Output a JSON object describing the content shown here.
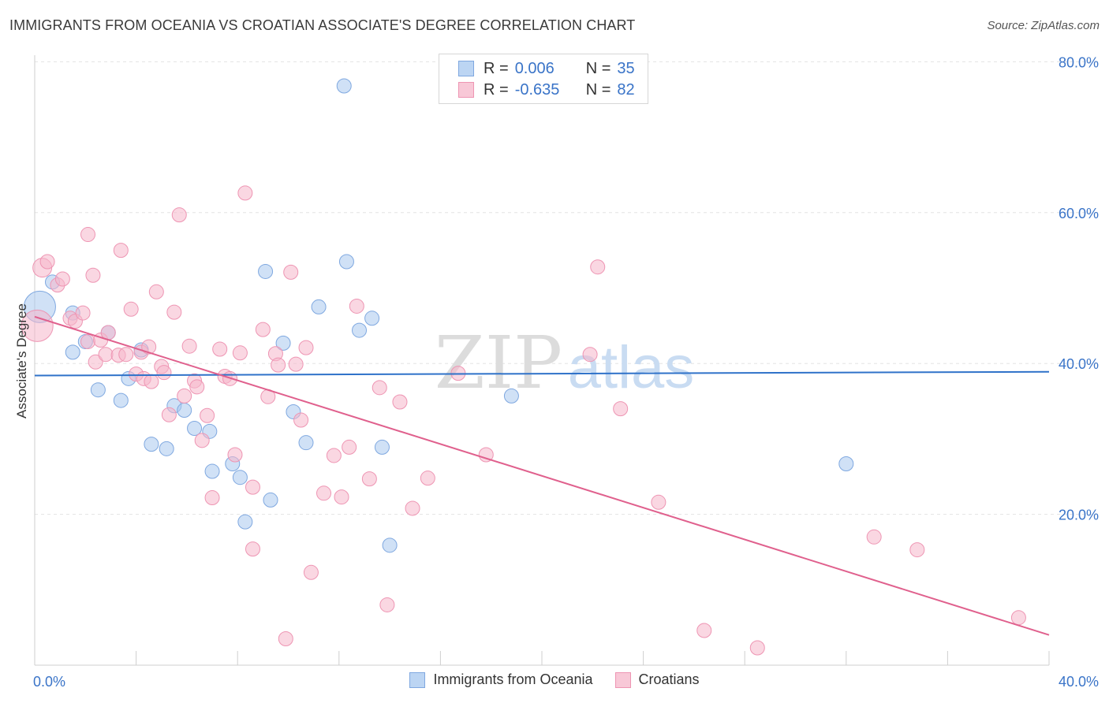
{
  "title": "IMMIGRANTS FROM OCEANIA VS CROATIAN ASSOCIATE'S DEGREE CORRELATION CHART",
  "source": "Source: ZipAtlas.com",
  "watermark": {
    "zip": "ZIP",
    "atlas": "atlas"
  },
  "colors": {
    "blue_fill": "#a9c8ef",
    "blue_stroke": "#7fa8e0",
    "blue_line": "#2f72c9",
    "pink_fill": "#f5b7cb",
    "pink_stroke": "#ee95b3",
    "pink_line": "#e0608d",
    "tick_text": "#3a74c8",
    "grid": "#e3e3e3"
  },
  "legend": {
    "rows": [
      {
        "r_label": "R =",
        "r_value": "0.006",
        "n_label": "N =",
        "n_value": "35"
      },
      {
        "r_label": "R =",
        "r_value": "-0.635",
        "n_label": "N =",
        "n_value": "82"
      }
    ]
  },
  "bottom_legend": [
    "Immigrants from Oceania",
    "Croatians"
  ],
  "chart_data": {
    "type": "scatter",
    "ylabel": "Associate's Degree",
    "x_tick_labels": [
      "0.0%",
      "40.0%"
    ],
    "y_tick_labels": [
      "20.0%",
      "40.0%",
      "60.0%",
      "80.0%"
    ],
    "xlim": [
      0,
      40
    ],
    "ylim": [
      0,
      82
    ],
    "grid": true,
    "series": [
      {
        "name": "Immigrants from Oceania",
        "color": "#a9c8ef",
        "trend": {
          "x": [
            0,
            40
          ],
          "y": [
            38.4,
            38.9
          ]
        },
        "points": [
          [
            0.2,
            47.5,
            20
          ],
          [
            0.7,
            50.8,
            9
          ],
          [
            1.5,
            46.7,
            9
          ],
          [
            1.5,
            41.5,
            9
          ],
          [
            2.0,
            42.9,
            9
          ],
          [
            2.5,
            36.5,
            9
          ],
          [
            2.9,
            44.1,
            9
          ],
          [
            3.4,
            35.1,
            9
          ],
          [
            3.7,
            38.0,
            9
          ],
          [
            4.2,
            41.8,
            9
          ],
          [
            4.6,
            29.3,
            9
          ],
          [
            5.2,
            28.7,
            9
          ],
          [
            5.5,
            34.4,
            9
          ],
          [
            5.9,
            33.8,
            9
          ],
          [
            6.3,
            31.4,
            9
          ],
          [
            6.9,
            31.0,
            9
          ],
          [
            7.0,
            25.7,
            9
          ],
          [
            7.8,
            26.7,
            9
          ],
          [
            8.1,
            24.9,
            9
          ],
          [
            8.3,
            19.0,
            9
          ],
          [
            9.1,
            52.2,
            9
          ],
          [
            9.3,
            21.9,
            9
          ],
          [
            9.8,
            42.7,
            9
          ],
          [
            10.2,
            33.6,
            9
          ],
          [
            10.7,
            29.5,
            9
          ],
          [
            11.2,
            47.5,
            9
          ],
          [
            12.3,
            53.5,
            9
          ],
          [
            12.8,
            44.4,
            9
          ],
          [
            13.3,
            46.0,
            9
          ],
          [
            13.7,
            28.9,
            9
          ],
          [
            14.0,
            15.9,
            9
          ],
          [
            12.2,
            76.8,
            9
          ],
          [
            18.8,
            35.7,
            9
          ],
          [
            32.0,
            26.7,
            9
          ],
          [
            4.9,
            24.0,
            0
          ]
        ]
      },
      {
        "name": "Croatians",
        "color": "#f5b7cb",
        "trend": {
          "x": [
            0,
            40
          ],
          "y": [
            46.2,
            4.0
          ]
        },
        "points": [
          [
            0.1,
            45.0,
            20
          ],
          [
            0.3,
            52.7,
            12
          ],
          [
            0.5,
            53.5,
            9
          ],
          [
            0.9,
            50.4,
            9
          ],
          [
            1.1,
            51.2,
            9
          ],
          [
            1.4,
            46.0,
            9
          ],
          [
            1.6,
            45.6,
            9
          ],
          [
            1.9,
            46.7,
            9
          ],
          [
            2.1,
            42.9,
            9
          ],
          [
            2.3,
            51.7,
            9
          ],
          [
            2.4,
            40.2,
            9
          ],
          [
            2.6,
            43.1,
            9
          ],
          [
            2.8,
            41.2,
            9
          ],
          [
            2.1,
            57.1,
            9
          ],
          [
            2.9,
            44.1,
            9
          ],
          [
            3.3,
            41.1,
            9
          ],
          [
            3.4,
            55.0,
            9
          ],
          [
            3.6,
            41.2,
            9
          ],
          [
            3.8,
            47.2,
            9
          ],
          [
            4.0,
            38.6,
            9
          ],
          [
            4.2,
            41.5,
            9
          ],
          [
            4.3,
            38.0,
            9
          ],
          [
            4.5,
            42.2,
            9
          ],
          [
            4.6,
            37.6,
            9
          ],
          [
            4.8,
            49.5,
            9
          ],
          [
            5.0,
            39.6,
            9
          ],
          [
            5.1,
            38.8,
            9
          ],
          [
            5.3,
            33.2,
            9
          ],
          [
            5.5,
            46.8,
            9
          ],
          [
            5.7,
            59.7,
            9
          ],
          [
            5.9,
            35.7,
            9
          ],
          [
            6.1,
            42.3,
            9
          ],
          [
            6.3,
            37.7,
            9
          ],
          [
            6.4,
            36.9,
            9
          ],
          [
            6.6,
            29.8,
            9
          ],
          [
            6.8,
            33.1,
            9
          ],
          [
            7.0,
            22.2,
            9
          ],
          [
            7.3,
            41.9,
            9
          ],
          [
            7.5,
            38.3,
            9
          ],
          [
            7.7,
            38.0,
            9
          ],
          [
            7.9,
            27.9,
            9
          ],
          [
            8.1,
            41.4,
            9
          ],
          [
            8.3,
            62.6,
            9
          ],
          [
            8.6,
            23.6,
            9
          ],
          [
            8.6,
            15.4,
            9
          ],
          [
            9.0,
            44.5,
            9
          ],
          [
            9.2,
            35.6,
            9
          ],
          [
            9.5,
            41.3,
            9
          ],
          [
            9.6,
            39.8,
            9
          ],
          [
            9.9,
            3.5,
            9
          ],
          [
            10.1,
            52.1,
            9
          ],
          [
            10.3,
            39.9,
            9
          ],
          [
            10.5,
            32.5,
            9
          ],
          [
            10.7,
            42.1,
            9
          ],
          [
            10.9,
            12.3,
            9
          ],
          [
            11.4,
            22.8,
            9
          ],
          [
            11.8,
            27.8,
            9
          ],
          [
            12.1,
            22.3,
            9
          ],
          [
            12.4,
            28.9,
            9
          ],
          [
            12.7,
            47.6,
            9
          ],
          [
            13.2,
            24.7,
            9
          ],
          [
            13.6,
            36.8,
            9
          ],
          [
            13.9,
            8.0,
            9
          ],
          [
            14.4,
            34.9,
            9
          ],
          [
            14.9,
            20.8,
            9
          ],
          [
            15.5,
            24.8,
            9
          ],
          [
            16.7,
            38.7,
            9
          ],
          [
            17.8,
            27.9,
            9
          ],
          [
            21.9,
            41.2,
            9
          ],
          [
            22.2,
            52.8,
            9
          ],
          [
            23.1,
            34.0,
            9
          ],
          [
            24.6,
            21.6,
            9
          ],
          [
            26.4,
            4.6,
            9
          ],
          [
            28.5,
            2.3,
            9
          ],
          [
            33.1,
            17.0,
            9
          ],
          [
            34.8,
            15.3,
            9
          ],
          [
            38.8,
            6.3,
            9
          ],
          [
            1.0,
            43.0,
            0
          ],
          [
            3.0,
            44.2,
            0
          ],
          [
            5.8,
            32.0,
            0
          ],
          [
            9.4,
            30.0,
            0
          ],
          [
            11.0,
            40.0,
            0
          ]
        ]
      }
    ]
  }
}
